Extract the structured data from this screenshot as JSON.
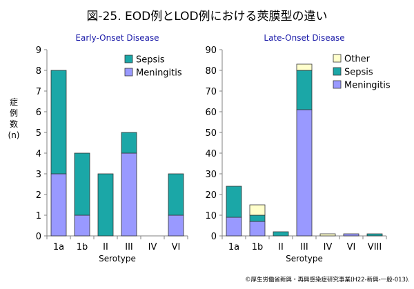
{
  "page": {
    "title": "図-25. EOD例とLOD例における莢膜型の違い",
    "credit": "©厚生労働省新興・再興感染症研究事業(H22-新興-一般-013)."
  },
  "colors": {
    "Meningitis": "#9999ff",
    "Sepsis": "#1ba7a7",
    "Other": "#ffffcc"
  },
  "chart_data": [
    {
      "type": "bar",
      "stacked": true,
      "title": "Early-Onset Disease",
      "xlabel": "Serotype",
      "ylabel": "症例数(n)",
      "ylim": [
        0,
        9
      ],
      "yticks": [
        0,
        1,
        2,
        3,
        4,
        5,
        6,
        7,
        8,
        9
      ],
      "categories": [
        "1a",
        "1b",
        "II",
        "III",
        "IV",
        "VI"
      ],
      "series": [
        {
          "name": "Meningitis",
          "values": [
            3,
            1,
            0,
            4,
            0,
            1
          ]
        },
        {
          "name": "Sepsis",
          "values": [
            5,
            3,
            3,
            1,
            0,
            2
          ]
        }
      ],
      "legend": {
        "position": "top-right",
        "order": [
          "Sepsis",
          "Meningitis"
        ]
      }
    },
    {
      "type": "bar",
      "stacked": true,
      "title": "Late-Onset Disease",
      "xlabel": "Serotype",
      "ylabel": "",
      "ylim": [
        0,
        90
      ],
      "yticks": [
        0,
        10,
        20,
        30,
        40,
        50,
        60,
        70,
        80,
        90
      ],
      "categories": [
        "1a",
        "1b",
        "II",
        "III",
        "IV",
        "VI",
        "VIII"
      ],
      "series": [
        {
          "name": "Meningitis",
          "values": [
            9,
            7,
            0,
            61,
            0,
            1,
            0
          ]
        },
        {
          "name": "Sepsis",
          "values": [
            15,
            3,
            2,
            19,
            0,
            0,
            1
          ]
        },
        {
          "name": "Other",
          "values": [
            0,
            5,
            0,
            3,
            1,
            0,
            0
          ]
        }
      ],
      "legend": {
        "position": "top-right",
        "order": [
          "Other",
          "Sepsis",
          "Meningitis"
        ]
      }
    }
  ]
}
